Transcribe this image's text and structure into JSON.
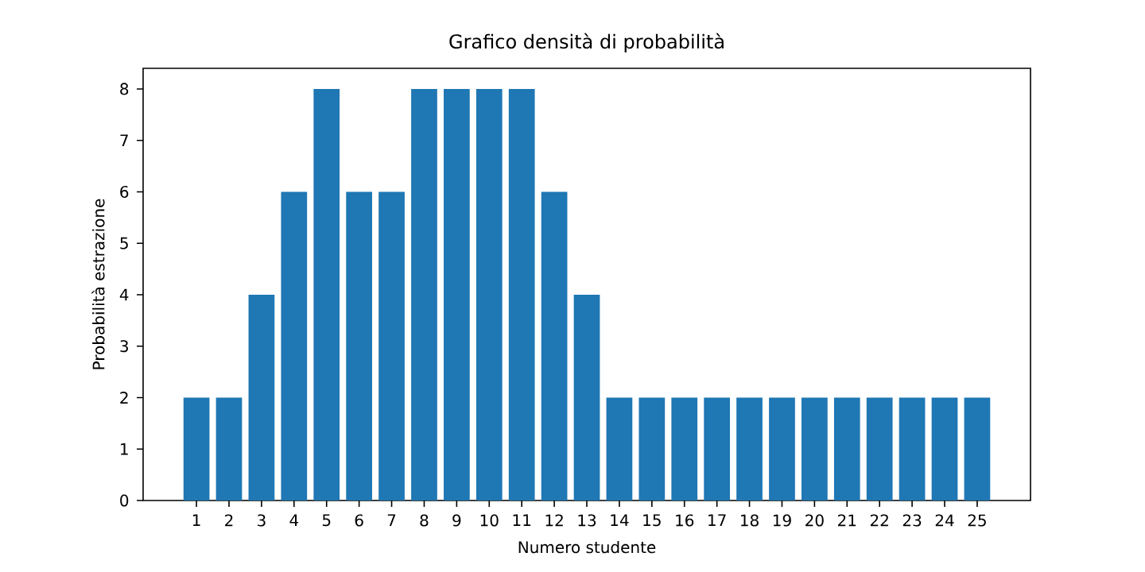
{
  "chart_data": {
    "type": "bar",
    "title": "Grafico densità di probabilità",
    "xlabel": "Numero studente",
    "ylabel": "Probabilità estrazione",
    "categories": [
      "1",
      "2",
      "3",
      "4",
      "5",
      "6",
      "7",
      "8",
      "9",
      "10",
      "11",
      "12",
      "13",
      "14",
      "15",
      "16",
      "17",
      "18",
      "19",
      "20",
      "21",
      "22",
      "23",
      "24",
      "25"
    ],
    "values": [
      2,
      2,
      4,
      6,
      8,
      6,
      6,
      8,
      8,
      8,
      8,
      6,
      4,
      2,
      2,
      2,
      2,
      2,
      2,
      2,
      2,
      2,
      2,
      2,
      2
    ],
    "color": "#1f77b4",
    "ylim": [
      0,
      8.4
    ],
    "yticks": [
      0,
      1,
      2,
      3,
      4,
      5,
      6,
      7,
      8
    ]
  }
}
